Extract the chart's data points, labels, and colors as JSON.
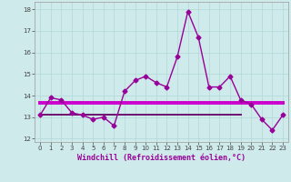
{
  "title": "",
  "xlabel": "Windchill (Refroidissement éolien,°C)",
  "bg_color": "#ceeaea",
  "line1_x": [
    0,
    1,
    2,
    3,
    4,
    5,
    6,
    7,
    8,
    9,
    10,
    11,
    12,
    13,
    14,
    15,
    16,
    17,
    18,
    19,
    20,
    21,
    22,
    23
  ],
  "line1_y": [
    13.1,
    13.9,
    13.8,
    13.2,
    13.1,
    12.9,
    13.0,
    12.6,
    14.2,
    14.7,
    14.9,
    14.6,
    14.4,
    15.8,
    17.9,
    16.7,
    14.4,
    14.4,
    14.9,
    13.8,
    13.6,
    12.9,
    12.4,
    13.1
  ],
  "line2_x": [
    0,
    23
  ],
  "line2_y": [
    13.65,
    13.65
  ],
  "line3_x": [
    0,
    19
  ],
  "line3_y": [
    13.1,
    13.1
  ],
  "line_color": "#990099",
  "hline_color1": "#cc00cc",
  "hline_color2": "#660066",
  "xlim": [
    -0.5,
    23.5
  ],
  "ylim": [
    11.85,
    18.35
  ],
  "yticks": [
    12,
    13,
    14,
    15,
    16,
    17,
    18
  ],
  "xticks": [
    0,
    1,
    2,
    3,
    4,
    5,
    6,
    7,
    8,
    9,
    10,
    11,
    12,
    13,
    14,
    15,
    16,
    17,
    18,
    19,
    20,
    21,
    22,
    23
  ],
  "grid_color": "#b0d8d8",
  "marker": "D",
  "markersize": 2.5,
  "linewidth": 1.0,
  "hline1_lw": 2.8,
  "hline2_lw": 1.3
}
